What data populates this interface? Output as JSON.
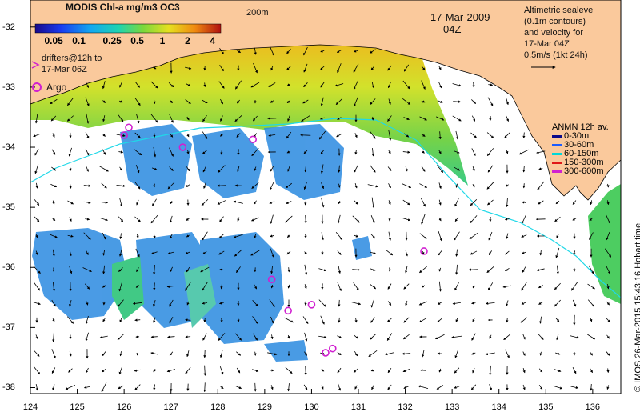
{
  "map": {
    "title": "MODIS Chl-a mg/m3 OC3",
    "date": "17-Mar-2009",
    "time": "04Z",
    "contour_label": "200m",
    "colorbar_ticks": [
      "0.05",
      "0.1",
      "0.25",
      "0.5",
      "1",
      "2",
      "4"
    ],
    "colorbar_tick_values": [
      0.05,
      0.1,
      0.25,
      0.5,
      1,
      2,
      4
    ],
    "colorbar_range": [
      0.03,
      5
    ],
    "drifters_label": "drifters@12h to\n17-Mar 06Z",
    "argo_label": "Argo",
    "altimetry_info": "Altimetric sealevel\n(0.1m contours)\nand velocity for\n17-Mar 04Z\n0.5m/s (1kt 24h)",
    "anmn_title": "ANMN 12h av.",
    "anmn_depths": [
      {
        "label": "0-30m",
        "color": "#0a0a8a"
      },
      {
        "label": "30-60m",
        "color": "#1c5cff"
      },
      {
        "label": "60-150m",
        "color": "#00d8d8"
      },
      {
        "label": "150-300m",
        "color": "#e01818"
      },
      {
        "label": "300-600m",
        "color": "#d020d0"
      }
    ],
    "x_ticks": [
      "124",
      "125",
      "126",
      "127",
      "128",
      "129",
      "130",
      "131",
      "132",
      "133",
      "134",
      "135",
      "136"
    ],
    "y_ticks": [
      "-32",
      "-33",
      "-34",
      "-35",
      "-36",
      "-37",
      "-38"
    ],
    "lon_range": [
      124,
      136.6
    ],
    "lat_range": [
      -38.1,
      -31.55
    ],
    "argo_floats": [
      {
        "lon": 126.1,
        "lat": -33.67
      },
      {
        "lon": 126.0,
        "lat": -33.8
      },
      {
        "lon": 127.25,
        "lat": -34.0
      },
      {
        "lon": 128.75,
        "lat": -33.87
      },
      {
        "lon": 129.15,
        "lat": -36.2
      },
      {
        "lon": 130.0,
        "lat": -36.62
      },
      {
        "lon": 129.5,
        "lat": -36.72
      },
      {
        "lon": 132.4,
        "lat": -35.73
      },
      {
        "lon": 130.3,
        "lat": -37.42
      },
      {
        "lon": 130.45,
        "lat": -37.35
      }
    ],
    "stamp": "© IMOS 26-Mar-2015 15:43:16 Hobart time",
    "colors": {
      "land": "#fac99c",
      "isobath": "#20d8e8",
      "argo": "#d020d0"
    }
  }
}
